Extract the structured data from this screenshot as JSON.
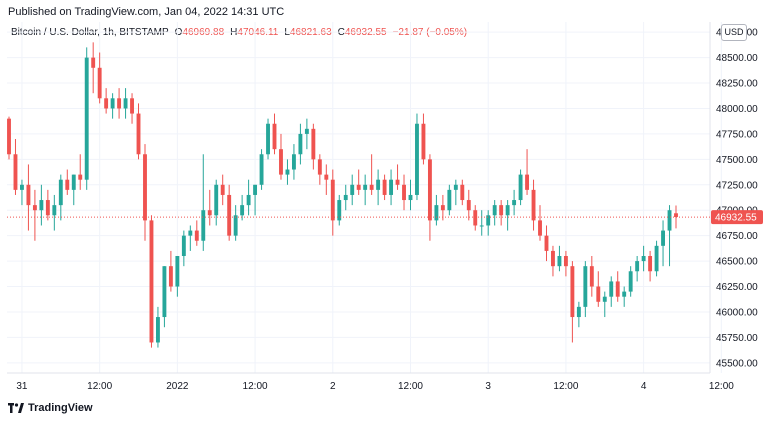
{
  "header": {
    "published": "Published on TradingView.com, Jan 04, 2022 14:31 UTC"
  },
  "legend": {
    "symbol": "Bitcoin / U.S. Dollar, 1h, BITSTAMP",
    "o_label": "O",
    "o_value": "46969.88",
    "h_label": "H",
    "h_value": "47046.11",
    "l_label": "L",
    "l_value": "46821.63",
    "c_label": "C",
    "c_value": "46932.55",
    "change": "−21.87 (−0.05%)"
  },
  "currency_badge": "USD",
  "footer": {
    "brand": "TradingView"
  },
  "colors": {
    "up": "#26a69a",
    "down": "#ef5350",
    "grid": "#f0f3fa",
    "last_price": "#ef5350"
  },
  "chart_data": {
    "type": "candlestick",
    "interval": "1h",
    "ylim": [
      45400,
      48850
    ],
    "yticks": [
      "48750.00",
      "48500.00",
      "48250.00",
      "48000.00",
      "47750.00",
      "47500.00",
      "47250.00",
      "47000.00",
      "46750.00",
      "46500.00",
      "46250.00",
      "46000.00",
      "45750.00",
      "45500.00"
    ],
    "xticks": [
      {
        "label": "31",
        "index": 2
      },
      {
        "label": "12:00",
        "index": 14
      },
      {
        "label": "2022",
        "index": 26
      },
      {
        "label": "12:00",
        "index": 38
      },
      {
        "label": "2",
        "index": 50
      },
      {
        "label": "12:00",
        "index": 62
      },
      {
        "label": "3",
        "index": 74
      },
      {
        "label": "12:00",
        "index": 86
      },
      {
        "label": "4",
        "index": 98
      },
      {
        "label": "12:00",
        "index": 110
      }
    ],
    "last_price": 46932.55,
    "last_price_label": "46932.55",
    "candles": [
      {
        "o": 47900,
        "h": 47920,
        "l": 47500,
        "c": 47550
      },
      {
        "o": 47550,
        "h": 47700,
        "l": 47150,
        "c": 47200
      },
      {
        "o": 47200,
        "h": 47300,
        "l": 47050,
        "c": 47250
      },
      {
        "o": 47250,
        "h": 47450,
        "l": 46800,
        "c": 47050
      },
      {
        "o": 47050,
        "h": 47200,
        "l": 46700,
        "c": 47000
      },
      {
        "o": 47000,
        "h": 47250,
        "l": 46850,
        "c": 47100
      },
      {
        "o": 47100,
        "h": 47200,
        "l": 46900,
        "c": 46950
      },
      {
        "o": 46950,
        "h": 47150,
        "l": 46800,
        "c": 47050
      },
      {
        "o": 47050,
        "h": 47350,
        "l": 46900,
        "c": 47300
      },
      {
        "o": 47300,
        "h": 47400,
        "l": 47150,
        "c": 47200
      },
      {
        "o": 47200,
        "h": 47350,
        "l": 47050,
        "c": 47350
      },
      {
        "o": 47350,
        "h": 47550,
        "l": 47200,
        "c": 47300
      },
      {
        "o": 47300,
        "h": 48600,
        "l": 47200,
        "c": 48500
      },
      {
        "o": 48500,
        "h": 48650,
        "l": 48150,
        "c": 48400
      },
      {
        "o": 48400,
        "h": 48550,
        "l": 48050,
        "c": 48100
      },
      {
        "o": 48100,
        "h": 48200,
        "l": 47950,
        "c": 48000
      },
      {
        "o": 48000,
        "h": 48150,
        "l": 47900,
        "c": 48100
      },
      {
        "o": 48100,
        "h": 48200,
        "l": 47900,
        "c": 48000
      },
      {
        "o": 48000,
        "h": 48200,
        "l": 47900,
        "c": 48100
      },
      {
        "o": 48100,
        "h": 48150,
        "l": 47850,
        "c": 47950
      },
      {
        "o": 47950,
        "h": 48050,
        "l": 47500,
        "c": 47550
      },
      {
        "o": 47550,
        "h": 47650,
        "l": 46700,
        "c": 46900
      },
      {
        "o": 46900,
        "h": 46950,
        "l": 45650,
        "c": 45700
      },
      {
        "o": 45700,
        "h": 46050,
        "l": 45650,
        "c": 45950
      },
      {
        "o": 45950,
        "h": 46450,
        "l": 45850,
        "c": 46450
      },
      {
        "o": 46450,
        "h": 46600,
        "l": 46200,
        "c": 46250
      },
      {
        "o": 46250,
        "h": 46550,
        "l": 46150,
        "c": 46550
      },
      {
        "o": 46550,
        "h": 46800,
        "l": 46450,
        "c": 46750
      },
      {
        "o": 46750,
        "h": 46850,
        "l": 46600,
        "c": 46800
      },
      {
        "o": 46800,
        "h": 46900,
        "l": 46650,
        "c": 46700
      },
      {
        "o": 46700,
        "h": 47550,
        "l": 46600,
        "c": 47000
      },
      {
        "o": 47000,
        "h": 47200,
        "l": 46850,
        "c": 46950
      },
      {
        "o": 46950,
        "h": 47300,
        "l": 46850,
        "c": 47250
      },
      {
        "o": 47250,
        "h": 47350,
        "l": 47050,
        "c": 47150
      },
      {
        "o": 47150,
        "h": 47250,
        "l": 46700,
        "c": 46750
      },
      {
        "o": 46750,
        "h": 47050,
        "l": 46700,
        "c": 46950
      },
      {
        "o": 46950,
        "h": 47150,
        "l": 46900,
        "c": 47050
      },
      {
        "o": 47050,
        "h": 47300,
        "l": 46950,
        "c": 47150
      },
      {
        "o": 47150,
        "h": 47250,
        "l": 46950,
        "c": 47250
      },
      {
        "o": 47250,
        "h": 47600,
        "l": 47200,
        "c": 47550
      },
      {
        "o": 47550,
        "h": 47900,
        "l": 47500,
        "c": 47850
      },
      {
        "o": 47850,
        "h": 47950,
        "l": 47550,
        "c": 47600
      },
      {
        "o": 47600,
        "h": 47750,
        "l": 47300,
        "c": 47350
      },
      {
        "o": 47350,
        "h": 47500,
        "l": 47250,
        "c": 47400
      },
      {
        "o": 47400,
        "h": 47650,
        "l": 47300,
        "c": 47550
      },
      {
        "o": 47550,
        "h": 47850,
        "l": 47450,
        "c": 47750
      },
      {
        "o": 47750,
        "h": 47900,
        "l": 47600,
        "c": 47800
      },
      {
        "o": 47800,
        "h": 47850,
        "l": 47400,
        "c": 47500
      },
      {
        "o": 47500,
        "h": 47550,
        "l": 47250,
        "c": 47350
      },
      {
        "o": 47350,
        "h": 47450,
        "l": 47150,
        "c": 47300
      },
      {
        "o": 47300,
        "h": 47400,
        "l": 46750,
        "c": 46900
      },
      {
        "o": 46900,
        "h": 47150,
        "l": 46850,
        "c": 47100
      },
      {
        "o": 47100,
        "h": 47250,
        "l": 47000,
        "c": 47150
      },
      {
        "o": 47150,
        "h": 47350,
        "l": 47050,
        "c": 47250
      },
      {
        "o": 47250,
        "h": 47400,
        "l": 47150,
        "c": 47200
      },
      {
        "o": 47200,
        "h": 47350,
        "l": 47050,
        "c": 47250
      },
      {
        "o": 47250,
        "h": 47550,
        "l": 47150,
        "c": 47200
      },
      {
        "o": 47200,
        "h": 47400,
        "l": 47050,
        "c": 47300
      },
      {
        "o": 47300,
        "h": 47350,
        "l": 47100,
        "c": 47150
      },
      {
        "o": 47150,
        "h": 47400,
        "l": 47050,
        "c": 47300
      },
      {
        "o": 47300,
        "h": 47450,
        "l": 47200,
        "c": 47250
      },
      {
        "o": 47250,
        "h": 47350,
        "l": 47000,
        "c": 47100
      },
      {
        "o": 47100,
        "h": 47300,
        "l": 47000,
        "c": 47150
      },
      {
        "o": 47150,
        "h": 47950,
        "l": 47100,
        "c": 47850
      },
      {
        "o": 47850,
        "h": 47950,
        "l": 47450,
        "c": 47500
      },
      {
        "o": 47500,
        "h": 47550,
        "l": 46700,
        "c": 46900
      },
      {
        "o": 46900,
        "h": 47150,
        "l": 46850,
        "c": 47050
      },
      {
        "o": 47050,
        "h": 47150,
        "l": 46900,
        "c": 47000
      },
      {
        "o": 47000,
        "h": 47250,
        "l": 46950,
        "c": 47200
      },
      {
        "o": 47200,
        "h": 47300,
        "l": 47050,
        "c": 47250
      },
      {
        "o": 47250,
        "h": 47300,
        "l": 47050,
        "c": 47100
      },
      {
        "o": 47100,
        "h": 47200,
        "l": 46900,
        "c": 47000
      },
      {
        "o": 47000,
        "h": 47050,
        "l": 46800,
        "c": 46850
      },
      {
        "o": 46850,
        "h": 47000,
        "l": 46750,
        "c": 46850
      },
      {
        "o": 46850,
        "h": 47000,
        "l": 46750,
        "c": 46950
      },
      {
        "o": 46950,
        "h": 47100,
        "l": 46850,
        "c": 47050
      },
      {
        "o": 47050,
        "h": 47100,
        "l": 46850,
        "c": 46950
      },
      {
        "o": 46950,
        "h": 47100,
        "l": 46800,
        "c": 47050
      },
      {
        "o": 47050,
        "h": 47200,
        "l": 46950,
        "c": 47100
      },
      {
        "o": 47100,
        "h": 47400,
        "l": 47050,
        "c": 47350
      },
      {
        "o": 47350,
        "h": 47600,
        "l": 47150,
        "c": 47200
      },
      {
        "o": 47200,
        "h": 47300,
        "l": 46800,
        "c": 46900
      },
      {
        "o": 46900,
        "h": 47050,
        "l": 46700,
        "c": 46750
      },
      {
        "o": 46750,
        "h": 46850,
        "l": 46500,
        "c": 46600
      },
      {
        "o": 46600,
        "h": 46650,
        "l": 46350,
        "c": 46450
      },
      {
        "o": 46450,
        "h": 46650,
        "l": 46400,
        "c": 46550
      },
      {
        "o": 46550,
        "h": 46600,
        "l": 46350,
        "c": 46450
      },
      {
        "o": 46450,
        "h": 46500,
        "l": 45700,
        "c": 45950
      },
      {
        "o": 45950,
        "h": 46100,
        "l": 45850,
        "c": 46050
      },
      {
        "o": 46050,
        "h": 46500,
        "l": 45950,
        "c": 46450
      },
      {
        "o": 46450,
        "h": 46550,
        "l": 46150,
        "c": 46250
      },
      {
        "o": 46250,
        "h": 46400,
        "l": 46050,
        "c": 46100
      },
      {
        "o": 46100,
        "h": 46200,
        "l": 45950,
        "c": 46150
      },
      {
        "o": 46150,
        "h": 46350,
        "l": 46050,
        "c": 46300
      },
      {
        "o": 46300,
        "h": 46400,
        "l": 46100,
        "c": 46150
      },
      {
        "o": 46150,
        "h": 46250,
        "l": 46050,
        "c": 46200
      },
      {
        "o": 46200,
        "h": 46450,
        "l": 46150,
        "c": 46400
      },
      {
        "o": 46400,
        "h": 46550,
        "l": 46300,
        "c": 46500
      },
      {
        "o": 46500,
        "h": 46650,
        "l": 46400,
        "c": 46550
      },
      {
        "o": 46550,
        "h": 46600,
        "l": 46300,
        "c": 46400
      },
      {
        "o": 46400,
        "h": 46700,
        "l": 46350,
        "c": 46650
      },
      {
        "o": 46650,
        "h": 46900,
        "l": 46450,
        "c": 46800
      },
      {
        "o": 46800,
        "h": 47050,
        "l": 46450,
        "c": 47000
      },
      {
        "o": 46970,
        "h": 47046,
        "l": 46822,
        "c": 46933
      }
    ]
  }
}
